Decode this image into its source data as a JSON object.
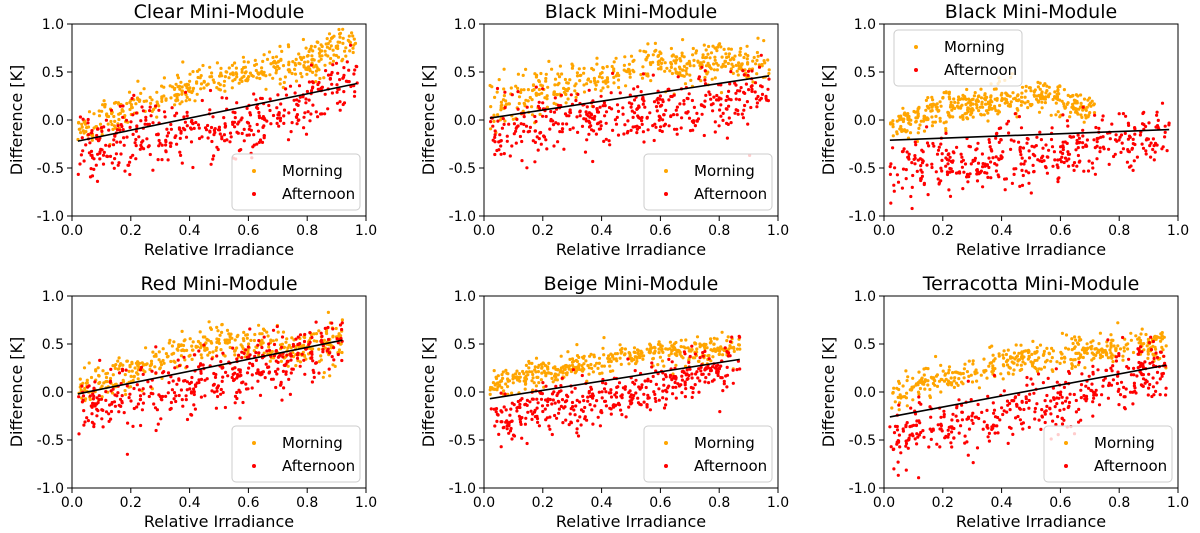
{
  "figure": {
    "colors": {
      "morning": "#FFA500",
      "afternoon": "#FF0000",
      "fit": "#000000"
    }
  },
  "chart_data": [
    {
      "type": "scatter",
      "title": "Clear Mini-Module",
      "xlabel": "Relative Irradiance",
      "ylabel": "Difference [K]",
      "xlim": [
        0.0,
        1.0
      ],
      "ylim": [
        -1.0,
        1.0
      ],
      "xticks": [
        "0.0",
        "0.2",
        "0.4",
        "0.6",
        "0.8",
        "1.0"
      ],
      "yticks": [
        "-1.0",
        "-0.5",
        "0.0",
        "0.5",
        "1.0"
      ],
      "legend": {
        "entries": [
          "Morning",
          "Afternoon"
        ],
        "location": "lower-right"
      },
      "series": [
        {
          "name": "Morning",
          "x_range": [
            0.02,
            0.97
          ],
          "trend": [
            [
              0.02,
              -0.12
            ],
            [
              0.2,
              0.12
            ],
            [
              0.4,
              0.33
            ],
            [
              0.6,
              0.52
            ],
            [
              0.8,
              0.62
            ],
            [
              0.96,
              0.82
            ]
          ],
          "spread": 0.18
        },
        {
          "name": "Afternoon",
          "x_range": [
            0.02,
            0.97
          ],
          "trend": [
            [
              0.02,
              -0.3
            ],
            [
              0.3,
              -0.15
            ],
            [
              0.6,
              -0.05
            ],
            [
              0.8,
              0.2
            ],
            [
              0.96,
              0.45
            ]
          ],
          "spread": 0.3
        }
      ],
      "fit": {
        "x": [
          0.02,
          0.97
        ],
        "y": [
          -0.22,
          0.38
        ]
      }
    },
    {
      "type": "scatter",
      "title": "Black Mini-Module",
      "xlabel": "Relative Irradiance",
      "ylabel": "Difference [K]",
      "xlim": [
        0.0,
        1.0
      ],
      "ylim": [
        -1.0,
        1.0
      ],
      "xticks": [
        "0.0",
        "0.2",
        "0.4",
        "0.6",
        "0.8",
        "1.0"
      ],
      "yticks": [
        "-1.0",
        "-0.5",
        "0.0",
        "0.5",
        "1.0"
      ],
      "legend": {
        "entries": [
          "Morning",
          "Afternoon"
        ],
        "location": "lower-right"
      },
      "series": [
        {
          "name": "Morning",
          "x_range": [
            0.02,
            0.97
          ],
          "trend": [
            [
              0.02,
              0.1
            ],
            [
              0.2,
              0.3
            ],
            [
              0.4,
              0.48
            ],
            [
              0.6,
              0.58
            ],
            [
              0.8,
              0.6
            ],
            [
              0.96,
              0.62
            ]
          ],
          "spread": 0.2
        },
        {
          "name": "Afternoon",
          "x_range": [
            0.02,
            0.97
          ],
          "trend": [
            [
              0.02,
              -0.1
            ],
            [
              0.3,
              0.0
            ],
            [
              0.6,
              0.08
            ],
            [
              0.8,
              0.2
            ],
            [
              0.96,
              0.35
            ]
          ],
          "spread": 0.3
        }
      ],
      "fit": {
        "x": [
          0.02,
          0.97
        ],
        "y": [
          0.02,
          0.46
        ]
      }
    },
    {
      "type": "scatter",
      "title": "Black Mini-Module",
      "xlabel": "Relative Irradiance",
      "ylabel": "Difference [K]",
      "xlim": [
        0.0,
        1.0
      ],
      "ylim": [
        -1.0,
        1.0
      ],
      "xticks": [
        "0.0",
        "0.2",
        "0.4",
        "0.6",
        "0.8",
        "1.0"
      ],
      "yticks": [
        "-1.0",
        "-0.5",
        "0.0",
        "0.5",
        "1.0"
      ],
      "legend": {
        "entries": [
          "Morning",
          "Afternoon"
        ],
        "location": "upper-left"
      },
      "series": [
        {
          "name": "Morning",
          "x_range": [
            0.02,
            0.72
          ],
          "trend": [
            [
              0.02,
              -0.05
            ],
            [
              0.2,
              0.1
            ],
            [
              0.4,
              0.2
            ],
            [
              0.55,
              0.25
            ],
            [
              0.7,
              0.12
            ]
          ],
          "spread": 0.15
        },
        {
          "name": "Afternoon",
          "x_range": [
            0.02,
            0.97
          ],
          "trend": [
            [
              0.02,
              -0.5
            ],
            [
              0.3,
              -0.45
            ],
            [
              0.6,
              -0.35
            ],
            [
              0.8,
              -0.2
            ],
            [
              0.96,
              -0.1
            ]
          ],
          "spread": 0.28
        }
      ],
      "fit": {
        "x": [
          0.02,
          0.97
        ],
        "y": [
          -0.21,
          -0.1
        ]
      }
    },
    {
      "type": "scatter",
      "title": "Red Mini-Module",
      "xlabel": "Relative Irradiance",
      "ylabel": "Difference [K]",
      "xlim": [
        0.0,
        1.0
      ],
      "ylim": [
        -1.0,
        1.0
      ],
      "xticks": [
        "0.0",
        "0.2",
        "0.4",
        "0.6",
        "0.8",
        "1.0"
      ],
      "yticks": [
        "-1.0",
        "-0.5",
        "0.0",
        "0.5",
        "1.0"
      ],
      "legend": {
        "entries": [
          "Morning",
          "Afternoon"
        ],
        "location": "lower-right"
      },
      "series": [
        {
          "name": "Morning",
          "x_range": [
            0.02,
            0.92
          ],
          "trend": [
            [
              0.02,
              0.0
            ],
            [
              0.2,
              0.2
            ],
            [
              0.4,
              0.45
            ],
            [
              0.5,
              0.55
            ],
            [
              0.7,
              0.45
            ],
            [
              0.9,
              0.5
            ]
          ],
          "spread": 0.18
        },
        {
          "name": "Afternoon",
          "x_range": [
            0.02,
            0.92
          ],
          "trend": [
            [
              0.02,
              -0.15
            ],
            [
              0.3,
              0.0
            ],
            [
              0.6,
              0.2
            ],
            [
              0.8,
              0.4
            ],
            [
              0.92,
              0.55
            ]
          ],
          "spread": 0.3
        }
      ],
      "fit": {
        "x": [
          0.02,
          0.92
        ],
        "y": [
          -0.02,
          0.54
        ]
      }
    },
    {
      "type": "scatter",
      "title": "Beige Mini-Module",
      "xlabel": "Relative Irradiance",
      "ylabel": "Difference [K]",
      "xlim": [
        0.0,
        1.0
      ],
      "ylim": [
        -1.0,
        1.0
      ],
      "xticks": [
        "0.0",
        "0.2",
        "0.4",
        "0.6",
        "0.8",
        "1.0"
      ],
      "yticks": [
        "-1.0",
        "-0.5",
        "0.0",
        "0.5",
        "1.0"
      ],
      "legend": {
        "entries": [
          "Morning",
          "Afternoon"
        ],
        "location": "lower-right"
      },
      "series": [
        {
          "name": "Morning",
          "x_range": [
            0.02,
            0.87
          ],
          "trend": [
            [
              0.02,
              0.05
            ],
            [
              0.2,
              0.2
            ],
            [
              0.4,
              0.35
            ],
            [
              0.6,
              0.42
            ],
            [
              0.8,
              0.45
            ],
            [
              0.87,
              0.45
            ]
          ],
          "spread": 0.13
        },
        {
          "name": "Afternoon",
          "x_range": [
            0.02,
            0.87
          ],
          "trend": [
            [
              0.02,
              -0.25
            ],
            [
              0.3,
              -0.15
            ],
            [
              0.6,
              0.05
            ],
            [
              0.8,
              0.25
            ],
            [
              0.87,
              0.32
            ]
          ],
          "spread": 0.25
        }
      ],
      "fit": {
        "x": [
          0.02,
          0.87
        ],
        "y": [
          -0.07,
          0.34
        ]
      }
    },
    {
      "type": "scatter",
      "title": "Terracotta Mini-Module",
      "xlabel": "Relative Irradiance",
      "ylabel": "Difference [K]",
      "xlim": [
        0.0,
        1.0
      ],
      "ylim": [
        -1.0,
        1.0
      ],
      "xticks": [
        "0.0",
        "0.2",
        "0.4",
        "0.6",
        "0.8",
        "1.0"
      ],
      "yticks": [
        "-1.0",
        "-0.5",
        "0.0",
        "0.5",
        "1.0"
      ],
      "legend": {
        "entries": [
          "Morning",
          "Afternoon"
        ],
        "location": "lower-right"
      },
      "series": [
        {
          "name": "Morning",
          "x_range": [
            0.02,
            0.96
          ],
          "trend": [
            [
              0.02,
              -0.05
            ],
            [
              0.2,
              0.15
            ],
            [
              0.4,
              0.3
            ],
            [
              0.6,
              0.4
            ],
            [
              0.8,
              0.45
            ],
            [
              0.96,
              0.5
            ]
          ],
          "spread": 0.15
        },
        {
          "name": "Afternoon",
          "x_range": [
            0.02,
            0.96
          ],
          "trend": [
            [
              0.02,
              -0.45
            ],
            [
              0.3,
              -0.3
            ],
            [
              0.6,
              -0.1
            ],
            [
              0.8,
              0.15
            ],
            [
              0.96,
              0.3
            ]
          ],
          "spread": 0.3
        }
      ],
      "fit": {
        "x": [
          0.02,
          0.96
        ],
        "y": [
          -0.26,
          0.28
        ]
      }
    }
  ]
}
